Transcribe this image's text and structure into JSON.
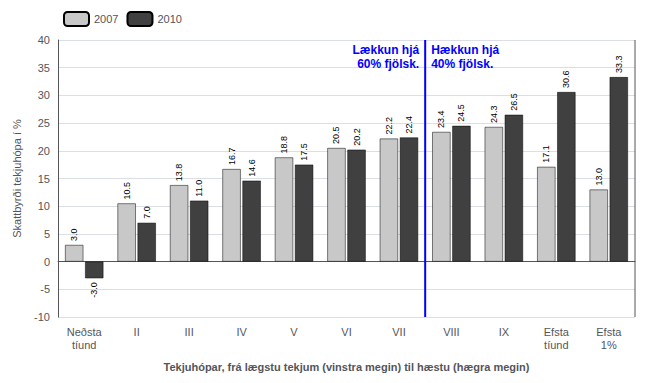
{
  "chart_data": {
    "type": "bar",
    "categories": [
      "Neðsta\ntíund",
      "II",
      "III",
      "IV",
      "V",
      "VI",
      "VII",
      "VIII",
      "IX",
      "Efsta\ntíund",
      "Efsta\n1%"
    ],
    "series": [
      {
        "name": "2007",
        "color": "#c8c8c8",
        "values": [
          3.0,
          10.5,
          13.8,
          16.7,
          18.8,
          20.5,
          22.2,
          23.4,
          24.3,
          17.1,
          13.0
        ],
        "value_labels": [
          "3.0",
          "10.5",
          "13.8",
          "16.7",
          "18.8",
          "20.5",
          "22.2",
          "23.4",
          "24.3",
          "17.1",
          "13.0"
        ]
      },
      {
        "name": "2010",
        "color": "#404040",
        "values": [
          -3.0,
          7.0,
          11.0,
          14.6,
          17.5,
          20.2,
          22.4,
          24.5,
          26.5,
          30.6,
          33.3
        ],
        "value_labels": [
          "-3.0",
          "7.0",
          "11.0",
          "14.6",
          "17.5",
          "20.2",
          "22.4",
          "24.5",
          "26.5",
          "30.6",
          "33.3"
        ]
      }
    ],
    "xlabel": "Tekjuhópar, frá lægstu tekjum (vinstra megin) til hæstu (hægra megin)",
    "ylabel": "Skattbyrði tekjuhópa í %",
    "ylim": [
      -10,
      40
    ],
    "yticks": [
      -10,
      -5,
      0,
      5,
      10,
      15,
      20,
      25,
      30,
      35,
      40
    ],
    "grid": true,
    "legend": "upper left",
    "data_labels": true,
    "vlines": [
      {
        "x": 6.5,
        "color": "blue"
      },
      {
        "x": 10.5,
        "color": "#555555"
      }
    ],
    "annotations": [
      {
        "text": "Lækkun hjá\n60% fjölsk.",
        "color": "#0000ff"
      },
      {
        "text": "Hækkun hjá\n40% fjölsk.",
        "color": "#0000ff"
      }
    ]
  }
}
